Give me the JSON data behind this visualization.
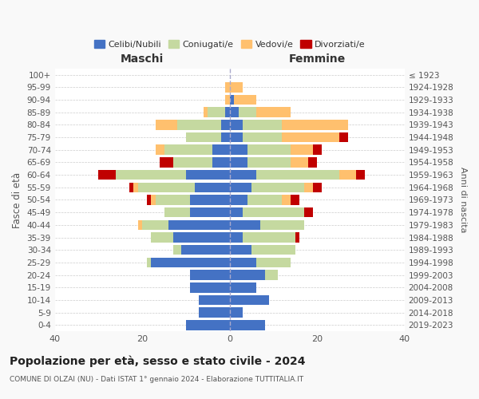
{
  "age_groups": [
    "0-4",
    "5-9",
    "10-14",
    "15-19",
    "20-24",
    "25-29",
    "30-34",
    "35-39",
    "40-44",
    "45-49",
    "50-54",
    "55-59",
    "60-64",
    "65-69",
    "70-74",
    "75-79",
    "80-84",
    "85-89",
    "90-94",
    "95-99",
    "100+"
  ],
  "birth_years": [
    "2019-2023",
    "2014-2018",
    "2009-2013",
    "2004-2008",
    "1999-2003",
    "1994-1998",
    "1989-1993",
    "1984-1988",
    "1979-1983",
    "1974-1978",
    "1969-1973",
    "1964-1968",
    "1959-1963",
    "1954-1958",
    "1949-1953",
    "1944-1948",
    "1939-1943",
    "1934-1938",
    "1929-1933",
    "1924-1928",
    "≤ 1923"
  ],
  "maschi": {
    "celibi": [
      10,
      7,
      7,
      9,
      9,
      18,
      11,
      13,
      14,
      9,
      9,
      8,
      10,
      4,
      4,
      2,
      2,
      1,
      0,
      0,
      0
    ],
    "coniugati": [
      0,
      0,
      0,
      0,
      0,
      1,
      2,
      5,
      6,
      6,
      8,
      13,
      16,
      9,
      11,
      8,
      10,
      4,
      0,
      0,
      0
    ],
    "vedovi": [
      0,
      0,
      0,
      0,
      0,
      0,
      0,
      0,
      1,
      0,
      1,
      1,
      0,
      0,
      2,
      0,
      5,
      1,
      1,
      1,
      0
    ],
    "divorziati": [
      0,
      0,
      0,
      0,
      0,
      0,
      0,
      0,
      0,
      0,
      1,
      1,
      4,
      3,
      0,
      0,
      0,
      0,
      0,
      0,
      0
    ]
  },
  "femmine": {
    "nubili": [
      8,
      3,
      9,
      6,
      8,
      6,
      5,
      3,
      7,
      3,
      4,
      5,
      6,
      4,
      4,
      3,
      3,
      2,
      1,
      0,
      0
    ],
    "coniugate": [
      0,
      0,
      0,
      0,
      3,
      8,
      10,
      12,
      10,
      14,
      8,
      12,
      19,
      10,
      10,
      9,
      9,
      4,
      0,
      0,
      0
    ],
    "vedove": [
      0,
      0,
      0,
      0,
      0,
      0,
      0,
      0,
      0,
      0,
      2,
      2,
      4,
      4,
      5,
      13,
      15,
      8,
      5,
      3,
      0
    ],
    "divorziate": [
      0,
      0,
      0,
      0,
      0,
      0,
      0,
      1,
      0,
      2,
      2,
      2,
      2,
      2,
      2,
      2,
      0,
      0,
      0,
      0,
      0
    ]
  },
  "colors": {
    "celibi": "#4472c4",
    "coniugati": "#c5d9a0",
    "vedovi": "#ffc06e",
    "divorziati": "#c00000"
  },
  "xlim": 40,
  "title": "Popolazione per età, sesso e stato civile - 2024",
  "subtitle": "COMUNE DI OLZAI (NU) - Dati ISTAT 1° gennaio 2024 - Elaborazione TUTTITALIA.IT",
  "ylabel_left": "Fasce di età",
  "ylabel_right": "Anni di nascita",
  "xlabel_maschi": "Maschi",
  "xlabel_femmine": "Femmine",
  "legend_labels": [
    "Celibi/Nubili",
    "Coniugati/e",
    "Vedovi/e",
    "Divorziati/e"
  ],
  "bg_color": "#f9f9f9",
  "plot_bg_color": "#ffffff"
}
